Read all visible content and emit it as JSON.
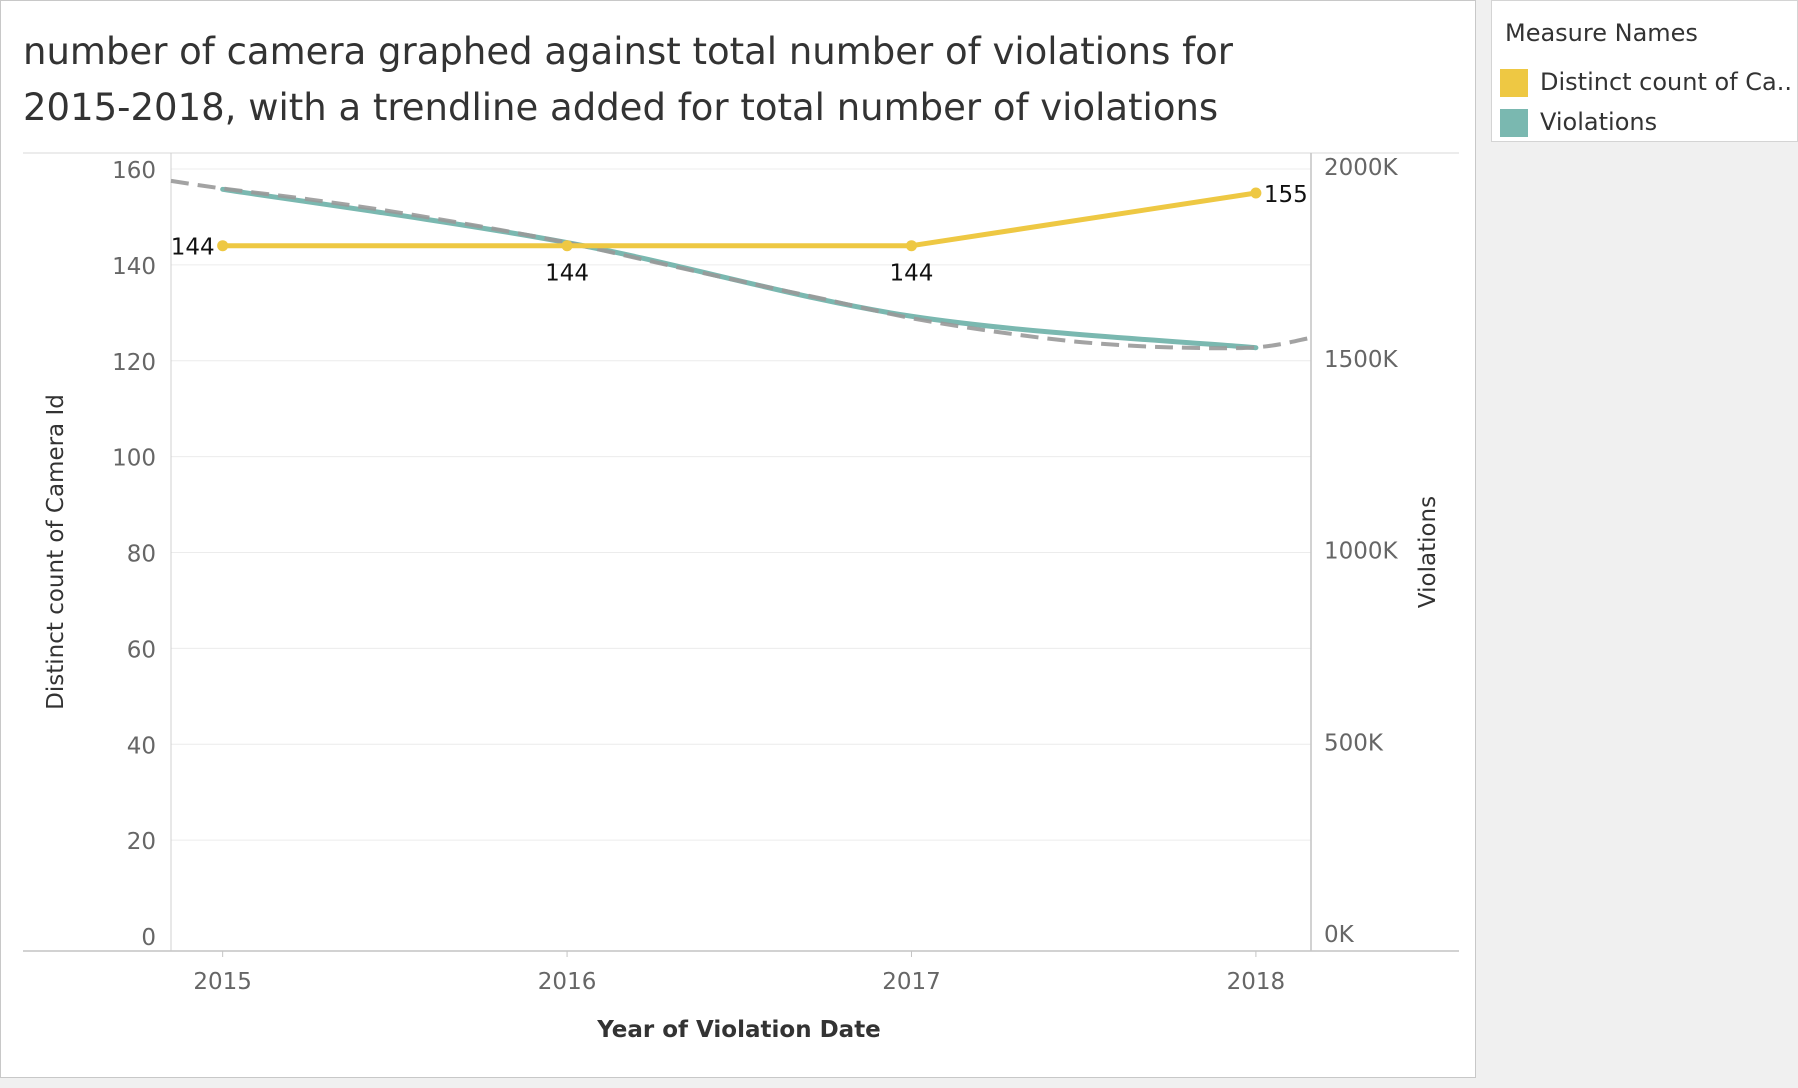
{
  "chart_data": {
    "type": "line",
    "title": "number of camera graphed against total number of violations for 2015-2018, with a trendline added for total number of violations",
    "xlabel": "Year of Violation Date",
    "x": [
      2015,
      2016,
      2017,
      2018
    ],
    "x_tick_labels": [
      "2015",
      "2016",
      "2017",
      "2018"
    ],
    "xlim": [
      2014.85,
      2018.16
    ],
    "y_left": {
      "label": "Distinct count of Camera Id",
      "lim": [
        0,
        160
      ],
      "ticks": [
        0,
        20,
        40,
        60,
        80,
        100,
        120,
        140,
        160
      ],
      "tick_labels": [
        "0",
        "20",
        "40",
        "60",
        "80",
        "100",
        "120",
        "140",
        "160"
      ]
    },
    "y_right": {
      "label": "Violations",
      "lim": [
        0,
        2000000
      ],
      "ticks": [
        0,
        500000,
        1000000,
        1500000,
        2000000
      ],
      "tick_labels": [
        "0K",
        "500K",
        "1000K",
        "1500K",
        "2000K"
      ]
    },
    "series": [
      {
        "name": "Distinct count of Camera Id",
        "axis": "left",
        "color": "#eec843",
        "values": [
          144,
          144,
          144,
          155
        ],
        "data_labels": [
          "144",
          "144",
          "144",
          "155"
        ]
      },
      {
        "name": "Violations",
        "axis": "right",
        "color": "#7ab8b0",
        "values": [
          1947000,
          1808000,
          1616000,
          1534000
        ]
      }
    ],
    "trendline": {
      "series": "Violations",
      "style": "dashed",
      "color": "#999999",
      "x": [
        2014.85,
        2015,
        2015.25,
        2015.5,
        2015.75,
        2016,
        2016.25,
        2016.5,
        2016.75,
        2017,
        2017.25,
        2017.5,
        2017.75,
        2018,
        2018.16
      ],
      "values": [
        1969000,
        1949000,
        1921000,
        1888000,
        1850000,
        1808000,
        1758000,
        1708000,
        1660000,
        1611000,
        1575000,
        1548000,
        1535000,
        1535000,
        1560000
      ]
    },
    "grid": true,
    "legend_position": "right"
  },
  "legend": {
    "title": "Measure Names",
    "items": [
      {
        "label": "Distinct count of Ca..",
        "color": "#eec843"
      },
      {
        "label": "Violations",
        "color": "#7ab8b0"
      }
    ]
  }
}
